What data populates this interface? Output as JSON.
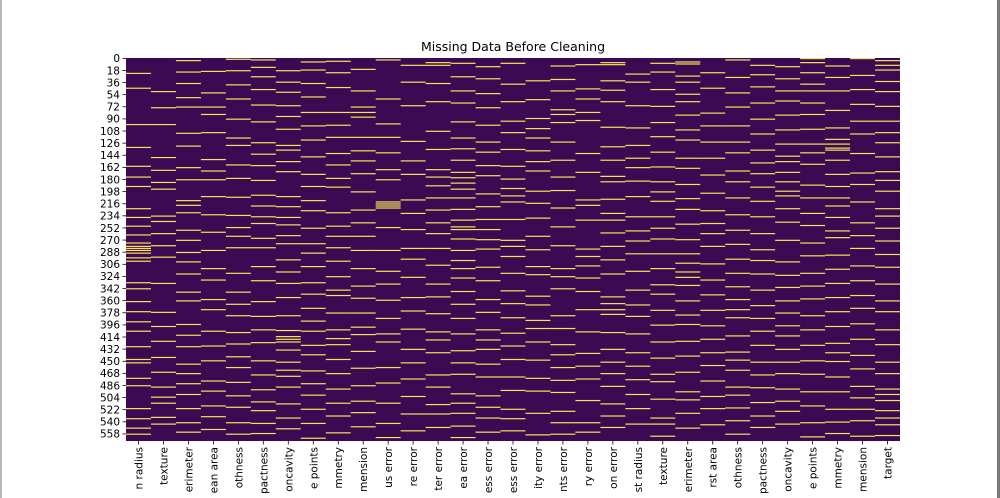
{
  "chart_data": {
    "type": "heatmap",
    "title": "Missing Data Before Cleaning",
    "xlabel": "",
    "ylabel": "",
    "colormap": "viridis",
    "colors": {
      "present": "#3b0a52",
      "missing": "#f6e35a"
    },
    "colorbar": false,
    "n_rows": 569,
    "row_tick_step": 18,
    "y_ticks": [
      0,
      18,
      36,
      54,
      72,
      90,
      108,
      126,
      144,
      162,
      180,
      198,
      216,
      234,
      252,
      270,
      288,
      306,
      324,
      342,
      360,
      378,
      396,
      414,
      432,
      450,
      468,
      486,
      504,
      522,
      540,
      558
    ],
    "columns": [
      "n radius",
      "texture",
      "erimeter",
      "ean area",
      "othness",
      "pactness",
      "oncavity",
      "e points",
      "mmetry",
      "mension",
      "us error",
      "re error",
      "ter error",
      "ea error",
      "ess error",
      "ess error",
      "ity error",
      "nts error",
      "ry error",
      "on error",
      "st radius",
      "texture",
      "erimeter",
      "rst area",
      "othness",
      "pactness",
      "oncavity",
      "e points",
      "mmetry",
      "mension",
      "target"
    ],
    "missing_fraction_estimate": 0.05,
    "missing_rows": [
      [
        22,
        44,
        98,
        132,
        160,
        176,
        190,
        223,
        236,
        249,
        262,
        274,
        279,
        282,
        285,
        289,
        296,
        301,
        333,
        342,
        361,
        376,
        391,
        405,
        428,
        447,
        452,
        475,
        486,
        520,
        535,
        549,
        558
      ],
      [
        49,
        73,
        98,
        147,
        166,
        184,
        194,
        234,
        242,
        260,
        278,
        295,
        334,
        377,
        398,
        420,
        444,
        466,
        488,
        503,
        512,
        533,
        543
      ],
      [
        3,
        20,
        37,
        58,
        72,
        111,
        130,
        162,
        180,
        211,
        218,
        229,
        255,
        270,
        288,
        302,
        320,
        347,
        360,
        395,
        411,
        428,
        454,
        468,
        483,
        499,
        520,
        541,
        555
      ],
      [
        19,
        51,
        72,
        83,
        110,
        150,
        167,
        180,
        205,
        232,
        258,
        285,
        312,
        329,
        358,
        373,
        405,
        427,
        449,
        479,
        494,
        516,
        532,
        551
      ],
      [
        1,
        18,
        39,
        60,
        90,
        118,
        129,
        158,
        178,
        206,
        233,
        251,
        264,
        281,
        319,
        347,
        365,
        382,
        407,
        424,
        443,
        459,
        481,
        501,
        518,
        541,
        558
      ],
      [
        2,
        13,
        27,
        46,
        69,
        94,
        125,
        142,
        159,
        181,
        203,
        219,
        235,
        245,
        267,
        281,
        309,
        330,
        361,
        383,
        403,
        422,
        449,
        470,
        492,
        510,
        523,
        542,
        557
      ],
      [
        18,
        35,
        50,
        70,
        86,
        105,
        129,
        136,
        153,
        168,
        205,
        220,
        236,
        247,
        263,
        275,
        299,
        317,
        334,
        355,
        382,
        404,
        413,
        417,
        421,
        433,
        451,
        463,
        472,
        488,
        513,
        534,
        550
      ],
      [
        5,
        17,
        37,
        57,
        80,
        100,
        121,
        146,
        172,
        190,
        211,
        226,
        252,
        275,
        289,
        309,
        333,
        350,
        371,
        390,
        405,
        426,
        440,
        464,
        483,
        500,
        521,
        542,
        564
      ],
      [
        4,
        21,
        43,
        80,
        99,
        117,
        141,
        158,
        178,
        191,
        229,
        249,
        264,
        281,
        301,
        324,
        344,
        352,
        378,
        403,
        416,
        425,
        447,
        468,
        491,
        512,
        531,
        556
      ],
      [
        16,
        48,
        72,
        80,
        87,
        117,
        137,
        152,
        171,
        198,
        225,
        244,
        264,
        285,
        312,
        338,
        356,
        378,
        399,
        410,
        435,
        460,
        486,
        509,
        526,
        547
      ],
      [
        2,
        60,
        97,
        117,
        140,
        165,
        180,
        213,
        216,
        219,
        222,
        251,
        285,
        316,
        335,
        359,
        386,
        409,
        421,
        459,
        482,
        512,
        542,
        563
      ],
      [
        10,
        35,
        70,
        123,
        152,
        172,
        210,
        230,
        254,
        282,
        298,
        325,
        355,
        375,
        402,
        432,
        452,
        476,
        502,
        528,
        553
      ],
      [
        6,
        10,
        37,
        64,
        108,
        135,
        165,
        176,
        189,
        207,
        225,
        244,
        260,
        282,
        307,
        335,
        354,
        379,
        406,
        418,
        437,
        470,
        488,
        514,
        528,
        548
      ],
      [
        7,
        27,
        48,
        66,
        94,
        118,
        134,
        151,
        169,
        177,
        185,
        194,
        207,
        224,
        240,
        250,
        254,
        268,
        285,
        300,
        312,
        326,
        346,
        365,
        386,
        409,
        434,
        452,
        469,
        498,
        512,
        527,
        546,
        563
      ],
      [
        12,
        30,
        52,
        73,
        99,
        124,
        139,
        159,
        174,
        201,
        220,
        239,
        254,
        269,
        283,
        310,
        330,
        358,
        377,
        403,
        418,
        432,
        454,
        473,
        501,
        518,
        534,
        555
      ],
      [
        7,
        38,
        64,
        93,
        110,
        135,
        160,
        179,
        193,
        204,
        213,
        239,
        270,
        279,
        294,
        319,
        345,
        364,
        385,
        408,
        427,
        447,
        473,
        493,
        521,
        535,
        553
      ],
      [
        33,
        61,
        89,
        104,
        118,
        137,
        153,
        167,
        197,
        215,
        237,
        264,
        284,
        309,
        321,
        353,
        366,
        389,
        401,
        421,
        448,
        475,
        494,
        527,
        559
      ],
      [
        11,
        31,
        48,
        76,
        83,
        95,
        124,
        151,
        176,
        196,
        222,
        250,
        278,
        312,
        324,
        342,
        382,
        401,
        425,
        440,
        459,
        478,
        496,
        524,
        541,
        558
      ],
      [
        9,
        45,
        60,
        80,
        92,
        141,
        169,
        210,
        218,
        240,
        283,
        294,
        308,
        326,
        346,
        373,
        406,
        438,
        457,
        476,
        508,
        541,
        555
      ],
      [
        6,
        9,
        33,
        47,
        64,
        102,
        131,
        151,
        175,
        183,
        209,
        230,
        240,
        259,
        279,
        299,
        320,
        354,
        364,
        373,
        380,
        407,
        432,
        451,
        468,
        487,
        513,
        531,
        548
      ],
      [
        23,
        35,
        70,
        103,
        129,
        148,
        162,
        182,
        205,
        235,
        256,
        271,
        290,
        316,
        344,
        366,
        383,
        409,
        437,
        457,
        477,
        499,
        520,
        543
      ],
      [
        7,
        20,
        46,
        71,
        95,
        116,
        139,
        161,
        183,
        198,
        212,
        235,
        252,
        268,
        290,
        312,
        336,
        350,
        374,
        396,
        421,
        445,
        469,
        480,
        506,
        534,
        543,
        561
      ],
      [
        5,
        8,
        26,
        35,
        53,
        64,
        84,
        106,
        121,
        148,
        163,
        187,
        208,
        224,
        246,
        269,
        290,
        304,
        317,
        325,
        337,
        360,
        381,
        395,
        420,
        442,
        466,
        495,
        507,
        527,
        549
      ],
      [
        21,
        44,
        81,
        100,
        124,
        148,
        173,
        200,
        226,
        245,
        260,
        279,
        305,
        329,
        351,
        374,
        397,
        417,
        437,
        456,
        479,
        502,
        520,
        544
      ],
      [
        2,
        28,
        51,
        72,
        100,
        124,
        140,
        167,
        183,
        207,
        232,
        255,
        276,
        298,
        319,
        339,
        358,
        373,
        385,
        412,
        436,
        448,
        463,
        488,
        500,
        519,
        538,
        558
      ],
      [
        10,
        24,
        42,
        66,
        90,
        112,
        136,
        155,
        171,
        191,
        212,
        235,
        260,
        284,
        300,
        320,
        344,
        367,
        386,
        405,
        426,
        451,
        470,
        489,
        511,
        531,
        548
      ],
      [
        12,
        30,
        48,
        63,
        84,
        106,
        127,
        145,
        153,
        169,
        183,
        197,
        204,
        223,
        243,
        270,
        302,
        322,
        340,
        360,
        378,
        397,
        412,
        432,
        451,
        468,
        491,
        509,
        524,
        543
      ],
      [
        0,
        6,
        21,
        38,
        48,
        66,
        83,
        105,
        127,
        140,
        157,
        188,
        207,
        230,
        248,
        274,
        293,
        319,
        338,
        357,
        382,
        403,
        426,
        449,
        469,
        495,
        516,
        541,
        562
      ],
      [
        11,
        28,
        48,
        77,
        103,
        120,
        127,
        133,
        136,
        151,
        172,
        190,
        207,
        219,
        236,
        256,
        266,
        292,
        313,
        334,
        355,
        376,
        398,
        423,
        437,
        450,
        473,
        495,
        521,
        540,
        557
      ],
      [
        0,
        25,
        46,
        68,
        93,
        112,
        141,
        170,
        187,
        213,
        244,
        263,
        282,
        308,
        330,
        352,
        371,
        394,
        417,
        441,
        461,
        487,
        504,
        521,
        538,
        561
      ],
      [
        3,
        10,
        17,
        34,
        49,
        71,
        93,
        110,
        125,
        146,
        168,
        181,
        197,
        223,
        234,
        252,
        271,
        291,
        310,
        335,
        360,
        376,
        403,
        425,
        451,
        468,
        491,
        499,
        508,
        523,
        534,
        544,
        560
      ]
    ]
  }
}
